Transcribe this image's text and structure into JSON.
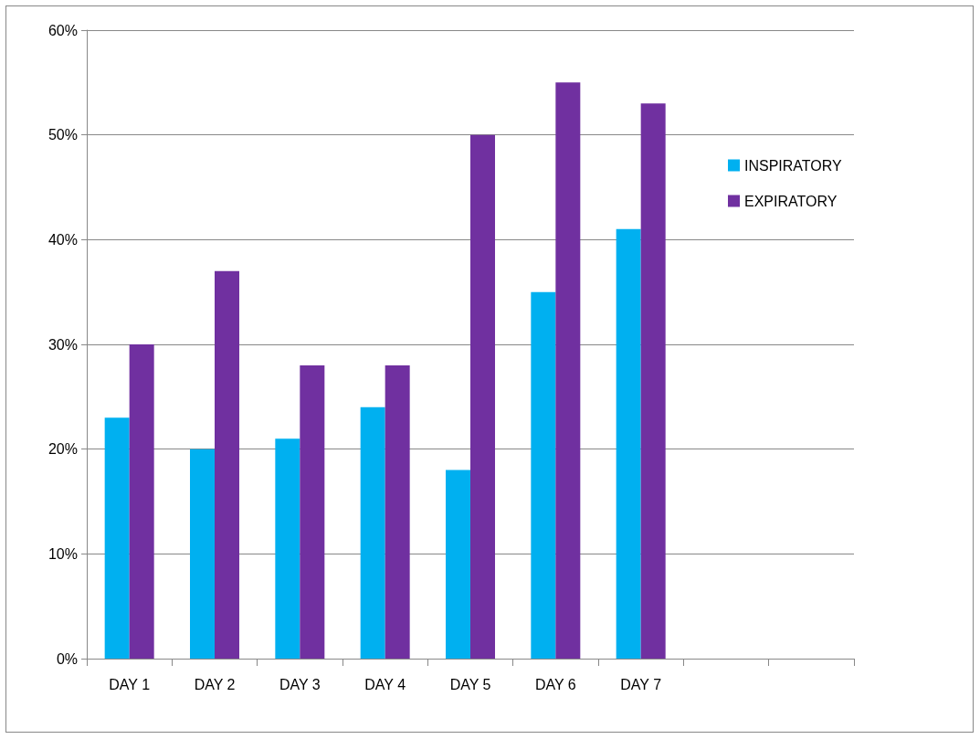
{
  "chart_data": {
    "type": "bar",
    "categories": [
      "DAY 1",
      "DAY 2",
      "DAY 3",
      "DAY 4",
      "DAY 5",
      "DAY 6",
      "DAY 7",
      null,
      null
    ],
    "series": [
      {
        "name": "INSPIRATORY",
        "color": "#00b0f0",
        "values": [
          23,
          20,
          21,
          24,
          18,
          35,
          41,
          null,
          null
        ]
      },
      {
        "name": "EXPIRATORY",
        "color": "#7030a0",
        "values": [
          30,
          37,
          28,
          28,
          50,
          55,
          53,
          null,
          null
        ]
      }
    ],
    "ylim": [
      0,
      60
    ],
    "yticks": [
      {
        "value": 0,
        "label": "0%"
      },
      {
        "value": 10,
        "label": "10%"
      },
      {
        "value": 20,
        "label": "20%"
      },
      {
        "value": 30,
        "label": "30%"
      },
      {
        "value": 40,
        "label": "40%"
      },
      {
        "value": 50,
        "label": "50%"
      },
      {
        "value": 60,
        "label": "60%"
      }
    ],
    "grid": "y",
    "legend": "right"
  }
}
